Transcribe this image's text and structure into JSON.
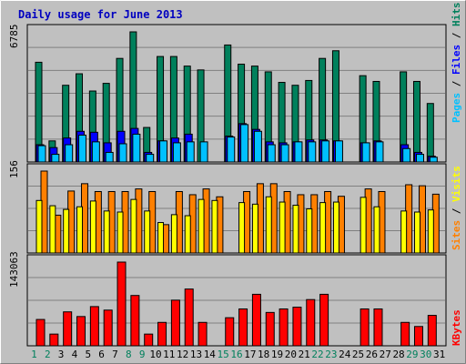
{
  "title": "Daily usage for June 2013",
  "colors": {
    "background": "#c0c0c0",
    "title": "#0000c0",
    "hits": "#00805c",
    "files": "#0000ff",
    "pages": "#00c0ff",
    "visits": "#ff8000",
    "sites": "#ffff00",
    "kbytes": "#ff0000",
    "weekend_label": "#00805c",
    "weekday_label": "#000000"
  },
  "labels": {
    "hits": "Hits",
    "files": "Files",
    "pages": "Pages",
    "visits": "Visits",
    "sites": "Sites",
    "kbytes": "KBytes",
    "sep": " / "
  },
  "axis": {
    "top_max": "6785",
    "mid_max": "156",
    "bot_max": "143063"
  },
  "chart_data": [
    {
      "type": "bar",
      "title": "Daily usage for June 2013",
      "categories": [
        "1",
        "2",
        "3",
        "4",
        "5",
        "6",
        "7",
        "8",
        "9",
        "10",
        "11",
        "12",
        "13",
        "14",
        "15",
        "16",
        "17",
        "18",
        "19",
        "20",
        "21",
        "22",
        "23",
        "24",
        "25",
        "26",
        "27",
        "28",
        "29",
        "30",
        "31"
      ],
      "weekend_days": [
        "1",
        "2",
        "8",
        "9",
        "15",
        "16",
        "22",
        "23",
        "29",
        "30"
      ],
      "ylim": [
        0,
        6785
      ],
      "series": [
        {
          "name": "Hits",
          "values": [
            5200,
            1100,
            4000,
            4600,
            3700,
            4100,
            5400,
            6785,
            1800,
            5500,
            5500,
            5000,
            4800,
            0,
            6100,
            5100,
            5000,
            4700,
            4150,
            4000,
            4250,
            5400,
            5800,
            0,
            4500,
            4200,
            0,
            4700,
            4200,
            3050,
            0
          ]
        },
        {
          "name": "Files",
          "values": [
            900,
            750,
            1250,
            1600,
            1550,
            1000,
            1600,
            1750,
            500,
            1100,
            1250,
            1450,
            0,
            0,
            1350,
            2000,
            1700,
            1050,
            1000,
            1050,
            1150,
            1150,
            1100,
            0,
            1000,
            1100,
            0,
            900,
            500,
            300,
            0
          ]
        },
        {
          "name": "Pages",
          "values": [
            850,
            400,
            900,
            1400,
            1050,
            500,
            950,
            1450,
            400,
            1100,
            1000,
            1050,
            1050,
            0,
            1300,
            1950,
            1600,
            900,
            900,
            1050,
            1050,
            1100,
            1100,
            0,
            1000,
            1050,
            0,
            700,
            400,
            250,
            0
          ]
        }
      ]
    },
    {
      "type": "bar",
      "categories": [
        "1",
        "2",
        "3",
        "4",
        "5",
        "6",
        "7",
        "8",
        "9",
        "10",
        "11",
        "12",
        "13",
        "14",
        "15",
        "16",
        "17",
        "18",
        "19",
        "20",
        "21",
        "22",
        "23",
        "24",
        "25",
        "26",
        "27",
        "28",
        "29",
        "30",
        "31"
      ],
      "ylim": [
        0,
        156
      ],
      "series": [
        {
          "name": "Visits",
          "values": [
            156,
            72,
            118,
            132,
            117,
            117,
            117,
            122,
            117,
            54,
            117,
            111,
            122,
            107,
            0,
            117,
            132,
            132,
            117,
            111,
            111,
            117,
            108,
            0,
            122,
            117,
            0,
            130,
            128,
            112,
            0
          ]
        },
        {
          "name": "Sites",
          "values": [
            100,
            90,
            83,
            88,
            99,
            80,
            78,
            102,
            80,
            58,
            73,
            71,
            102,
            100,
            0,
            96,
            93,
            107,
            97,
            91,
            84,
            96,
            97,
            0,
            106,
            88,
            0,
            80,
            78,
            82,
            0
          ]
        }
      ]
    },
    {
      "type": "bar",
      "categories": [
        "1",
        "2",
        "3",
        "4",
        "5",
        "6",
        "7",
        "8",
        "9",
        "10",
        "11",
        "12",
        "13",
        "14",
        "15",
        "16",
        "17",
        "18",
        "19",
        "20",
        "21",
        "22",
        "23",
        "24",
        "25",
        "26",
        "27",
        "28",
        "29",
        "30",
        "31"
      ],
      "ylim": [
        0,
        143063
      ],
      "series": [
        {
          "name": "KBytes",
          "values": [
            45000,
            20000,
            58000,
            50000,
            67000,
            61000,
            143063,
            86000,
            20000,
            40000,
            78000,
            97000,
            40000,
            0,
            48000,
            63000,
            88000,
            57000,
            63000,
            66000,
            79000,
            88000,
            0,
            0,
            63000,
            63000,
            0,
            40000,
            33000,
            52000,
            0
          ]
        }
      ]
    }
  ]
}
